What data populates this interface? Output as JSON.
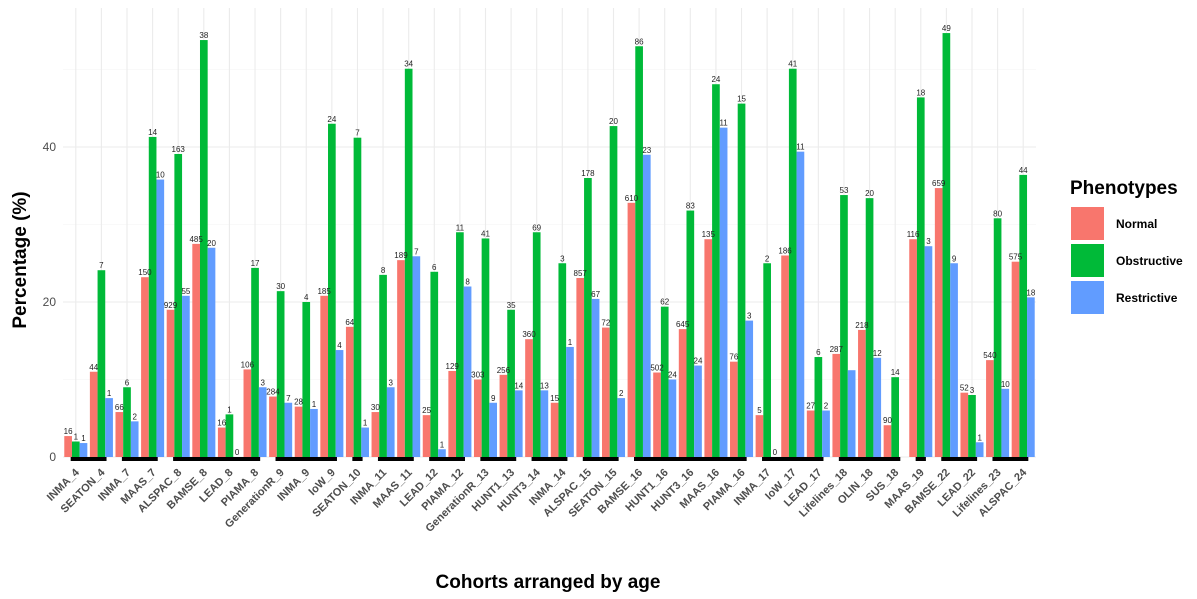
{
  "chart_data": {
    "type": "bar",
    "title": "",
    "xlabel": "Cohorts arranged by age",
    "ylabel": "Percentage (%)",
    "ylim": [
      0,
      58
    ],
    "yticks": [
      0,
      20,
      40
    ],
    "grid": true,
    "legend": {
      "title": "Phenotypes",
      "position": "right"
    },
    "categories": [
      "INMA_4",
      "SEATON_4",
      "INMA_7",
      "MAAS_7",
      "ALSPAC_8",
      "BAMSE_8",
      "LEAD_8",
      "PIAMA_8",
      "GenerationR_9",
      "INMA_9",
      "IoW_9",
      "SEATON_10",
      "INMA_11",
      "MAAS_11",
      "LEAD_12",
      "PIAMA_12",
      "GenerationR_13",
      "HUNT1_13",
      "HUNT3_14",
      "INMA_14",
      "ALSPAC_15",
      "SEATON_15",
      "BAMSE_16",
      "HUNT1_16",
      "HUNT3_16",
      "MAAS_16",
      "PIAMA_16",
      "INMA_17",
      "IoW_17",
      "LEAD_17",
      "Lifelines_18",
      "OLIN_18",
      "SUS_18",
      "MAAS_19",
      "BAMSE_22",
      "LEAD_22",
      "Lifelines_23",
      "ALSPAC_24"
    ],
    "series": [
      {
        "name": "Normal",
        "color": "#F8766D",
        "values": [
          2.7,
          11.0,
          5.8,
          23.2,
          19.0,
          27.5,
          3.8,
          11.3,
          7.8,
          6.5,
          20.8,
          16.8,
          5.8,
          25.4,
          5.4,
          11.1,
          10.0,
          10.6,
          15.2,
          7.0,
          23.1,
          16.7,
          32.8,
          10.9,
          16.5,
          28.1,
          12.3,
          5.4,
          26.0,
          6.0,
          13.3,
          16.4,
          4.1,
          28.1,
          34.7,
          8.3,
          12.5,
          25.2
        ],
        "labels": [
          "16",
          "44",
          "66",
          "150",
          "929",
          "485",
          "16",
          "106",
          "284",
          "28",
          "185",
          "64",
          "30",
          "189",
          "25",
          "129",
          "303",
          "256",
          "360",
          "15",
          "857",
          "72",
          "610",
          "502",
          "645",
          "135",
          "76",
          "5",
          "186",
          "27",
          "287",
          "218",
          "90",
          "116",
          "659",
          "52",
          "540",
          "575"
        ]
      },
      {
        "name": "Obstructive",
        "color": "#00BA38",
        "values": [
          2.0,
          24.1,
          9.0,
          41.3,
          39.1,
          53.8,
          5.5,
          24.4,
          21.4,
          20.0,
          43.0,
          41.2,
          23.5,
          50.1,
          23.9,
          29.0,
          28.2,
          19.0,
          29.0,
          25.0,
          36.0,
          42.7,
          53.0,
          19.4,
          31.8,
          48.1,
          45.6,
          25.0,
          50.1,
          12.9,
          33.8,
          33.4,
          10.3,
          46.4,
          54.7,
          8.0,
          30.8,
          36.4
        ],
        "labels": [
          "1",
          "7",
          "6",
          "14",
          "163",
          "38",
          "1",
          "17",
          "30",
          "4",
          "24",
          "7",
          "8",
          "34",
          "6",
          "11",
          "41",
          "35",
          "69",
          "3",
          "178",
          "20",
          "86",
          "62",
          "83",
          "24",
          "15",
          "2",
          "41",
          "6",
          "53",
          "20",
          "14",
          "18",
          "49",
          "3",
          "80",
          "44"
        ]
      },
      {
        "name": "Restrictive",
        "color": "#619CFF",
        "values": [
          1.8,
          7.6,
          4.6,
          35.8,
          20.8,
          27.0,
          0.0,
          9.0,
          7.0,
          6.2,
          13.8,
          3.8,
          9.0,
          25.9,
          1.0,
          22.0,
          7.0,
          8.6,
          8.6,
          14.2,
          20.4,
          7.6,
          39.0,
          10.0,
          11.8,
          42.5,
          17.6,
          0.0,
          39.4,
          6.0,
          11.2,
          12.8,
          null,
          27.2,
          25.0,
          1.9,
          8.8,
          20.6
        ],
        "labels": [
          "1",
          "1",
          "2",
          "10",
          "55",
          "20",
          "0",
          "3",
          "7",
          "1",
          "4",
          "1",
          "3",
          "7",
          "1",
          "8",
          "9",
          "14",
          "13",
          "1",
          "67",
          "2",
          "23",
          "24",
          "24",
          "11",
          "3",
          "0",
          "11",
          "2",
          "",
          "12",
          "",
          "3",
          "9",
          "1",
          "10",
          "18"
        ]
      }
    ],
    "age_group_bars": [
      [
        0,
        1
      ],
      [
        2,
        3
      ],
      [
        4,
        7
      ],
      [
        8,
        10
      ],
      [
        11,
        11
      ],
      [
        12,
        13
      ],
      [
        14,
        15
      ],
      [
        16,
        17
      ],
      [
        18,
        19
      ],
      [
        20,
        21
      ],
      [
        22,
        26
      ],
      [
        27,
        29
      ],
      [
        30,
        32
      ],
      [
        33,
        33
      ],
      [
        34,
        35
      ],
      [
        36,
        37
      ]
    ]
  }
}
